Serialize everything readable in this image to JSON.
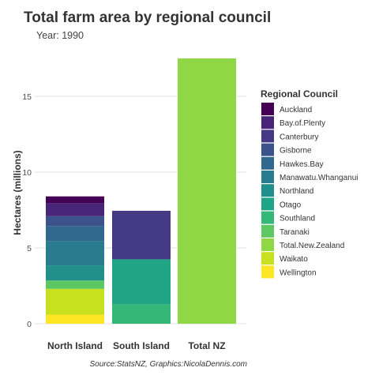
{
  "chart_data": {
    "type": "bar",
    "stacked": true,
    "title": "Total farm area by regional council",
    "subtitle": "Year: 1990",
    "xlabel": "",
    "ylabel": "Hectares (millions)",
    "caption": "Source:StatsNZ, Graphics:NicolaDennis.com",
    "categories": [
      "North Island",
      "South Island",
      "Total NZ"
    ],
    "ylim": [
      0,
      17.5
    ],
    "yticks": [
      0,
      5,
      10,
      15
    ],
    "grid": true,
    "legend_title": "Regional Council",
    "legend_position": "right",
    "series": [
      {
        "name": "Auckland",
        "color": "#440154",
        "values": [
          0.45,
          0,
          0
        ]
      },
      {
        "name": "Bay.of.Plenty",
        "color": "#482576",
        "values": [
          0.85,
          0,
          0
        ]
      },
      {
        "name": "Canterbury",
        "color": "#443A83",
        "values": [
          0,
          3.2,
          0
        ]
      },
      {
        "name": "Gisborne",
        "color": "#3B528B",
        "values": [
          0.65,
          0,
          0
        ]
      },
      {
        "name": "Hawkes.Bay",
        "color": "#31688E",
        "values": [
          1.0,
          0,
          0
        ]
      },
      {
        "name": "Manawatu.Whanganui",
        "color": "#287C8E",
        "values": [
          1.6,
          0,
          0
        ]
      },
      {
        "name": "Northland",
        "color": "#21908C",
        "values": [
          1.0,
          0,
          0
        ]
      },
      {
        "name": "Otago",
        "color": "#20A486",
        "values": [
          0,
          2.95,
          0
        ]
      },
      {
        "name": "Southland",
        "color": "#35B779",
        "values": [
          0,
          1.3,
          0
        ]
      },
      {
        "name": "Taranaki",
        "color": "#5DC863",
        "values": [
          0.55,
          0,
          0
        ]
      },
      {
        "name": "Total.New.Zealand",
        "color": "#8FD744",
        "values": [
          0,
          0,
          17.5
        ]
      },
      {
        "name": "Waikato",
        "color": "#C7E020",
        "values": [
          1.7,
          0,
          0
        ]
      },
      {
        "name": "Wellington",
        "color": "#FDE725",
        "values": [
          0.6,
          0,
          0
        ]
      }
    ]
  }
}
